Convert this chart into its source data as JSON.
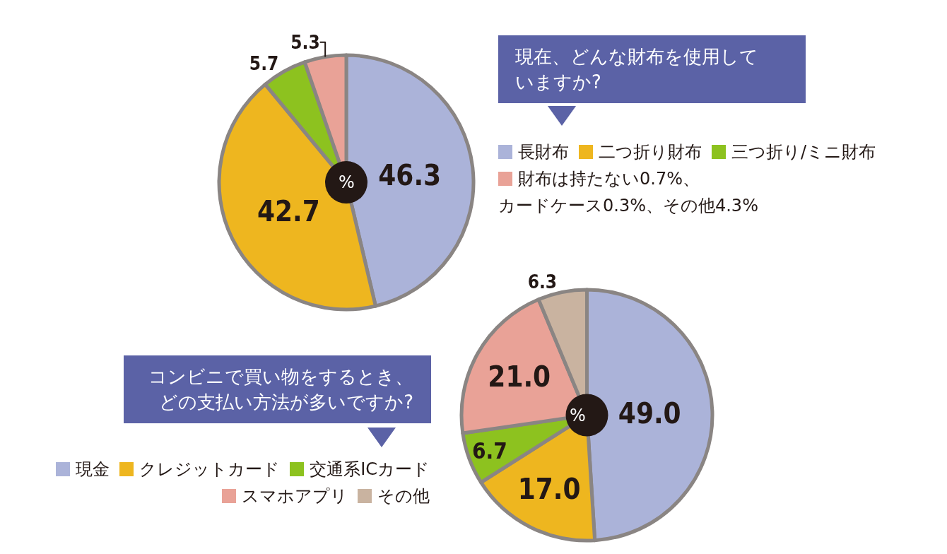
{
  "chart_data": [
    {
      "type": "pie",
      "title": "現在、どんな財布を使用していますか?",
      "categories": [
        "長財布",
        "二つ折り財布",
        "三つ折り/ミニ財布",
        "財布は持たない0.7%、カードケース0.3%、その他4.3%"
      ],
      "values": [
        46.3,
        42.7,
        5.7,
        5.3
      ],
      "value_labels": [
        "46.3",
        "42.7",
        "5.7",
        "5.3"
      ],
      "colors": [
        "#abb3d9",
        "#eeb61f",
        "#8dc21f",
        "#e9a297"
      ],
      "annotations": [
        "%"
      ],
      "legend": "right"
    },
    {
      "type": "pie",
      "title": "コンビニで買い物をするとき、どの支払い方法が多いですか?",
      "categories": [
        "現金",
        "クレジットカード",
        "交通系ICカード",
        "スマホアプリ",
        "その他"
      ],
      "values": [
        49.0,
        17.0,
        6.7,
        21.0,
        6.3
      ],
      "value_labels": [
        "49.0",
        "17.0",
        "6.7",
        "21.0",
        "6.3"
      ],
      "colors": [
        "#abb3d9",
        "#eeb61f",
        "#8dc21f",
        "#e9a297",
        "#c9b3a0"
      ],
      "annotations": [
        "%"
      ],
      "legend": "left"
    }
  ]
}
